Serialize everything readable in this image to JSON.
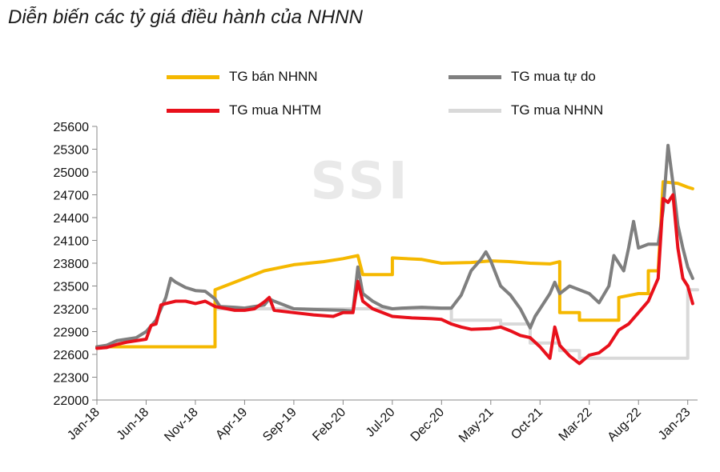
{
  "chart_data": {
    "type": "line",
    "title": "Diễn biến các tỷ giá điều hành của NHNN",
    "watermark": "SSI",
    "xlabel": "",
    "ylabel": "",
    "ylim": [
      22000,
      25600
    ],
    "y_ticks": [
      25600,
      25300,
      25000,
      24700,
      24400,
      24100,
      23800,
      23500,
      23200,
      22900,
      22600,
      22300,
      22000
    ],
    "x_range": [
      0,
      61
    ],
    "x_ticks": [
      {
        "x": 0,
        "label": "Jan-18"
      },
      {
        "x": 5,
        "label": "Jun-18"
      },
      {
        "x": 10,
        "label": "Nov-18"
      },
      {
        "x": 15,
        "label": "Apr-19"
      },
      {
        "x": 20,
        "label": "Sep-19"
      },
      {
        "x": 25,
        "label": "Feb-20"
      },
      {
        "x": 30,
        "label": "Jul-20"
      },
      {
        "x": 35,
        "label": "Dec-20"
      },
      {
        "x": 40,
        "label": "May-21"
      },
      {
        "x": 45,
        "label": "Oct-21"
      },
      {
        "x": 50,
        "label": "Mar-22"
      },
      {
        "x": 55,
        "label": "Aug-22"
      },
      {
        "x": 60,
        "label": "Jan-23"
      }
    ],
    "x_unit": "months since Jan-18",
    "series": [
      {
        "name": "TG bán NHNN",
        "color": "#F5B800",
        "points": [
          [
            0,
            22700
          ],
          [
            12,
            22700
          ],
          [
            12,
            23450
          ],
          [
            14,
            23550
          ],
          [
            17,
            23700
          ],
          [
            20,
            23780
          ],
          [
            23,
            23820
          ],
          [
            25,
            23860
          ],
          [
            26.5,
            23900
          ],
          [
            27,
            23650
          ],
          [
            30,
            23650
          ],
          [
            30,
            23870
          ],
          [
            33,
            23850
          ],
          [
            35,
            23800
          ],
          [
            38,
            23810
          ],
          [
            40,
            23830
          ],
          [
            42,
            23820
          ],
          [
            44,
            23800
          ],
          [
            46,
            23790
          ],
          [
            47,
            23820
          ],
          [
            47,
            23150
          ],
          [
            49,
            23150
          ],
          [
            49,
            23050
          ],
          [
            53,
            23050
          ],
          [
            53,
            23350
          ],
          [
            55,
            23400
          ],
          [
            56,
            23400
          ],
          [
            56,
            23700
          ],
          [
            57,
            23700
          ],
          [
            57.5,
            24870
          ],
          [
            59,
            24850
          ],
          [
            60,
            24800
          ],
          [
            60.5,
            24780
          ]
        ]
      },
      {
        "name": "TG mua tự do",
        "color": "#7F7F7F",
        "points": [
          [
            0,
            22700
          ],
          [
            1,
            22720
          ],
          [
            2,
            22780
          ],
          [
            3,
            22800
          ],
          [
            4,
            22820
          ],
          [
            5,
            22900
          ],
          [
            6,
            23050
          ],
          [
            7,
            23350
          ],
          [
            7.5,
            23600
          ],
          [
            8,
            23550
          ],
          [
            9,
            23480
          ],
          [
            10,
            23440
          ],
          [
            11,
            23430
          ],
          [
            12,
            23330
          ],
          [
            12.5,
            23230
          ],
          [
            14,
            23220
          ],
          [
            15,
            23210
          ],
          [
            16,
            23230
          ],
          [
            17,
            23250
          ],
          [
            17.5,
            23330
          ],
          [
            18,
            23300
          ],
          [
            20,
            23200
          ],
          [
            22,
            23190
          ],
          [
            25,
            23180
          ],
          [
            26,
            23170
          ],
          [
            26.5,
            23750
          ],
          [
            27,
            23400
          ],
          [
            28,
            23300
          ],
          [
            29,
            23230
          ],
          [
            30,
            23200
          ],
          [
            31,
            23210
          ],
          [
            33,
            23220
          ],
          [
            35,
            23210
          ],
          [
            36,
            23210
          ],
          [
            37,
            23380
          ],
          [
            38,
            23700
          ],
          [
            39,
            23850
          ],
          [
            39.5,
            23950
          ],
          [
            40,
            23830
          ],
          [
            41,
            23500
          ],
          [
            42,
            23380
          ],
          [
            43,
            23200
          ],
          [
            44,
            22950
          ],
          [
            44.5,
            23100
          ],
          [
            45,
            23200
          ],
          [
            46,
            23400
          ],
          [
            46.5,
            23550
          ],
          [
            47,
            23400
          ],
          [
            48,
            23500
          ],
          [
            49,
            23450
          ],
          [
            50,
            23400
          ],
          [
            51,
            23280
          ],
          [
            52,
            23500
          ],
          [
            52.5,
            23900
          ],
          [
            53,
            23800
          ],
          [
            53.5,
            23700
          ],
          [
            54,
            24000
          ],
          [
            54.5,
            24350
          ],
          [
            55,
            24000
          ],
          [
            56,
            24050
          ],
          [
            57,
            24050
          ],
          [
            57.5,
            24500
          ],
          [
            58,
            25350
          ],
          [
            58.5,
            24850
          ],
          [
            59,
            24300
          ],
          [
            59.5,
            24000
          ],
          [
            60,
            23750
          ],
          [
            60.5,
            23600
          ]
        ]
      },
      {
        "name": "TG mua NHTM",
        "color": "#E8101B",
        "points": [
          [
            0,
            22680
          ],
          [
            1,
            22690
          ],
          [
            2,
            22730
          ],
          [
            3,
            22760
          ],
          [
            4,
            22780
          ],
          [
            5,
            22800
          ],
          [
            5.5,
            22980
          ],
          [
            6,
            23000
          ],
          [
            6.5,
            23250
          ],
          [
            7,
            23270
          ],
          [
            8,
            23300
          ],
          [
            9,
            23300
          ],
          [
            10,
            23270
          ],
          [
            11,
            23300
          ],
          [
            12,
            23230
          ],
          [
            14,
            23180
          ],
          [
            15,
            23180
          ],
          [
            16,
            23200
          ],
          [
            17,
            23290
          ],
          [
            17.5,
            23350
          ],
          [
            18,
            23180
          ],
          [
            20,
            23150
          ],
          [
            22,
            23120
          ],
          [
            24,
            23100
          ],
          [
            25,
            23150
          ],
          [
            26,
            23150
          ],
          [
            26.5,
            23560
          ],
          [
            27,
            23300
          ],
          [
            28,
            23200
          ],
          [
            29,
            23150
          ],
          [
            30,
            23100
          ],
          [
            32,
            23080
          ],
          [
            34,
            23070
          ],
          [
            35,
            23060
          ],
          [
            36,
            23000
          ],
          [
            37,
            22960
          ],
          [
            38,
            22930
          ],
          [
            40,
            22940
          ],
          [
            41,
            22960
          ],
          [
            42,
            22910
          ],
          [
            43,
            22850
          ],
          [
            44,
            22820
          ],
          [
            45,
            22700
          ],
          [
            46,
            22550
          ],
          [
            46.5,
            22960
          ],
          [
            47,
            22720
          ],
          [
            48,
            22580
          ],
          [
            49,
            22480
          ],
          [
            50,
            22590
          ],
          [
            51,
            22620
          ],
          [
            52,
            22720
          ],
          [
            53,
            22920
          ],
          [
            54,
            23000
          ],
          [
            55,
            23150
          ],
          [
            56,
            23300
          ],
          [
            57,
            23600
          ],
          [
            57.5,
            24650
          ],
          [
            58,
            24600
          ],
          [
            58.5,
            24700
          ],
          [
            59,
            24000
          ],
          [
            59.5,
            23600
          ],
          [
            60,
            23500
          ],
          [
            60.5,
            23270
          ]
        ]
      },
      {
        "name": "TG mua NHNN",
        "color": "#D9D9D9",
        "points": [
          [
            0,
            22700
          ],
          [
            12,
            22700
          ],
          [
            12,
            23200
          ],
          [
            36,
            23200
          ],
          [
            36,
            23050
          ],
          [
            41,
            23050
          ],
          [
            41,
            23000
          ],
          [
            44,
            23000
          ],
          [
            44,
            22750
          ],
          [
            47,
            22750
          ],
          [
            47,
            22650
          ],
          [
            49,
            22650
          ],
          [
            49,
            22550
          ],
          [
            60,
            22550
          ],
          [
            60,
            23450
          ],
          [
            61,
            23450
          ]
        ]
      }
    ]
  }
}
